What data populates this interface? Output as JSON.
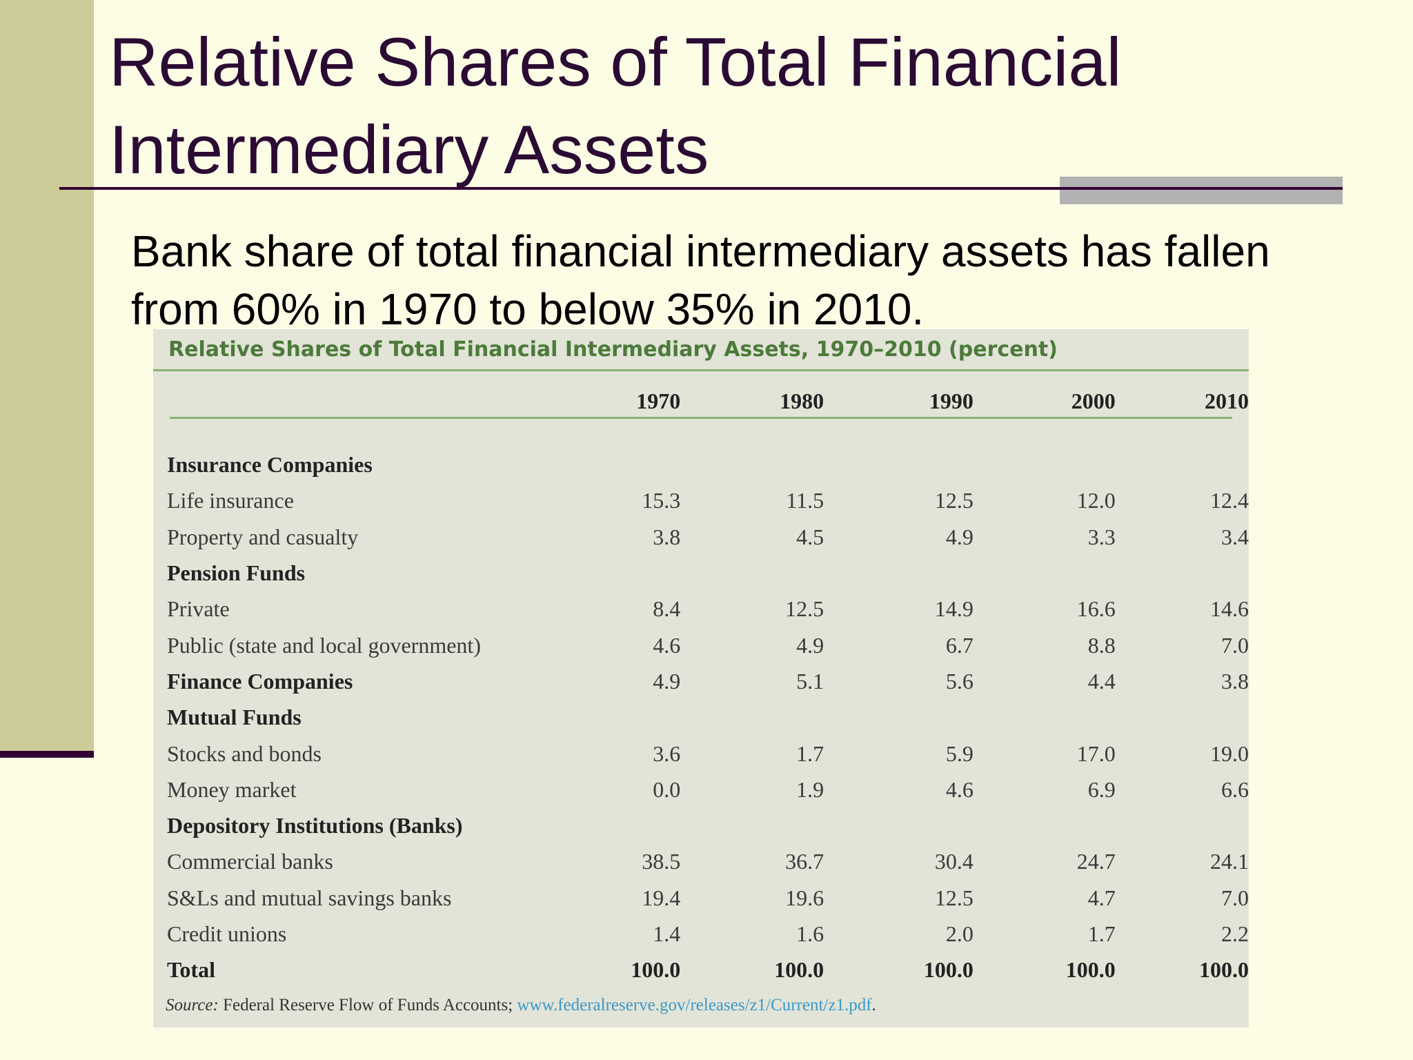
{
  "slide": {
    "title": "Relative Shares of Total Financial Intermediary Assets",
    "subtitle": "Bank share of total financial intermediary assets has fallen from 60% in 1970 to below 35% in 2010."
  },
  "source": {
    "prefix": "Source:",
    "text": " Federal Reserve Flow of Funds Accounts; ",
    "link": "www.federalreserve.gov/releases/z1/Current/z1.pdf",
    "suffix": "."
  },
  "colors": {
    "background": "#fdfde6",
    "sidebar": "#cccc99",
    "title_text": "#2b0a33",
    "table_panel": "#e2e4d8",
    "caption_text": "#4c7a3a",
    "link": "#3b98c8"
  },
  "chart_data": {
    "type": "table",
    "title": "Relative Shares of Total Financial Intermediary Assets, 1970–2010 (percent)",
    "columns": [
      "1970",
      "1980",
      "1990",
      "2000",
      "2010"
    ],
    "rows": [
      {
        "label": "Insurance Companies",
        "kind": "category",
        "values": []
      },
      {
        "label": "Life insurance",
        "kind": "item",
        "values": [
          "15.3",
          "11.5",
          "12.5",
          "12.0",
          "12.4"
        ]
      },
      {
        "label": "Property and casualty",
        "kind": "item",
        "values": [
          "3.8",
          "4.5",
          "4.9",
          "3.3",
          "3.4"
        ]
      },
      {
        "label": "Pension Funds",
        "kind": "category",
        "values": []
      },
      {
        "label": "Private",
        "kind": "item",
        "values": [
          "8.4",
          "12.5",
          "14.9",
          "16.6",
          "14.6"
        ]
      },
      {
        "label": "Public (state and local government)",
        "kind": "item",
        "values": [
          "4.6",
          "4.9",
          "6.7",
          "8.8",
          "7.0"
        ]
      },
      {
        "label": "Finance Companies",
        "kind": "category",
        "values": [
          "4.9",
          "5.1",
          "5.6",
          "4.4",
          "3.8"
        ]
      },
      {
        "label": "Mutual Funds",
        "kind": "category",
        "values": []
      },
      {
        "label": "Stocks and bonds",
        "kind": "item",
        "values": [
          "3.6",
          "1.7",
          "5.9",
          "17.0",
          "19.0"
        ]
      },
      {
        "label": "Money market",
        "kind": "item",
        "values": [
          "0.0",
          "1.9",
          "4.6",
          "6.9",
          "6.6"
        ]
      },
      {
        "label": "Depository Institutions (Banks)",
        "kind": "category",
        "values": []
      },
      {
        "label": "Commercial banks",
        "kind": "item",
        "values": [
          "38.5",
          "36.7",
          "30.4",
          "24.7",
          "24.1"
        ]
      },
      {
        "label": "S&Ls and mutual savings banks",
        "kind": "item",
        "values": [
          "19.4",
          "19.6",
          "12.5",
          "4.7",
          "7.0"
        ]
      },
      {
        "label": "Credit unions",
        "kind": "item",
        "values": [
          "1.4",
          "1.6",
          "2.0",
          "1.7",
          "2.2"
        ]
      },
      {
        "label": "Total",
        "kind": "total",
        "values": [
          "100.0",
          "100.0",
          "100.0",
          "100.0",
          "100.0"
        ]
      }
    ]
  }
}
